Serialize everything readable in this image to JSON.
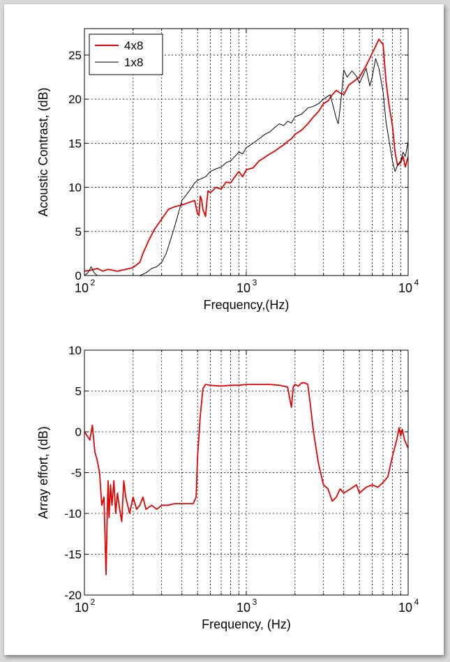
{
  "chart_data": [
    {
      "type": "line",
      "xscale": "log",
      "xlim": [
        100,
        10000
      ],
      "ylim": [
        0,
        28
      ],
      "grid": true,
      "legend_location": "top-left",
      "xlabel": "Frequency,(Hz)",
      "ylabel": "Acoustic Contrast, (dB)",
      "xticks": [
        100,
        1000,
        10000
      ],
      "xtick_labels": [
        {
          "base": "10",
          "exp": "2"
        },
        {
          "base": "10",
          "exp": "3"
        },
        {
          "base": "10",
          "exp": "4"
        }
      ],
      "yticks": [
        0,
        5,
        10,
        15,
        20,
        25
      ],
      "ytick_labels": [
        "0",
        "5",
        "10",
        "15",
        "20",
        "25"
      ],
      "series": [
        {
          "name": "4x8",
          "color": "#e60000",
          "x": [
            100,
            110,
            120,
            130,
            140,
            160,
            180,
            200,
            220,
            230,
            250,
            270,
            300,
            330,
            360,
            400,
            430,
            460,
            480,
            500,
            510,
            520,
            530,
            540,
            560,
            580,
            600,
            650,
            700,
            750,
            800,
            850,
            900,
            950,
            1000,
            1100,
            1200,
            1300,
            1400,
            1500,
            1600,
            1700,
            1800,
            1900,
            2000,
            2200,
            2400,
            2600,
            2800,
            3000,
            3200,
            3400,
            3600,
            3800,
            4000,
            4300,
            4600,
            5000,
            5500,
            6000,
            6300,
            6600,
            7000,
            7300,
            7600,
            8000,
            8300,
            8600,
            9000,
            9300,
            9600,
            10000
          ],
          "y": [
            0.5,
            0.6,
            0.8,
            0.5,
            0.7,
            0.5,
            0.7,
            0.9,
            1.5,
            2.5,
            4.0,
            5.2,
            6.4,
            7.5,
            7.8,
            8.0,
            8.2,
            8.4,
            8.5,
            7.0,
            6.8,
            9.0,
            8.6,
            7.5,
            6.7,
            9.6,
            9.4,
            10.0,
            9.8,
            10.6,
            10.5,
            11.2,
            11.8,
            11.2,
            12.0,
            12.2,
            13.0,
            13.4,
            13.8,
            14.1,
            14.5,
            14.8,
            15.2,
            15.5,
            16.0,
            16.5,
            17.2,
            18.0,
            18.6,
            19.5,
            19.8,
            20.5,
            21.0,
            20.7,
            20.5,
            21.6,
            22.0,
            22.5,
            23.8,
            25.2,
            26.0,
            26.8,
            26.2,
            22.0,
            19.5,
            17.0,
            14.0,
            12.5,
            12.8,
            13.5,
            12.3,
            13.5
          ]
        },
        {
          "name": "1x8",
          "color": "#000000",
          "x": [
            100,
            105,
            110,
            115,
            120,
            130,
            140,
            150,
            160,
            180,
            200,
            220,
            240,
            260,
            280,
            300,
            320,
            340,
            360,
            380,
            400,
            420,
            440,
            460,
            480,
            500,
            530,
            560,
            600,
            650,
            700,
            750,
            800,
            850,
            900,
            950,
            1000,
            1100,
            1200,
            1300,
            1400,
            1500,
            1600,
            1700,
            1800,
            1900,
            2000,
            2200,
            2400,
            2600,
            2800,
            3000,
            3300,
            3600,
            3700,
            3800,
            3900,
            4000,
            4200,
            4500,
            4800,
            5000,
            5500,
            5800,
            6000,
            6300,
            6600,
            7000,
            7300,
            7600,
            8000,
            8300,
            8600,
            9000,
            9300,
            9600,
            10000
          ],
          "y": [
            0.0,
            0.3,
            1.0,
            0.3,
            0.0,
            0.0,
            0.0,
            0.0,
            0.0,
            0.0,
            0.0,
            0.0,
            0.3,
            0.8,
            1.0,
            1.5,
            2.5,
            4.0,
            5.5,
            7.0,
            8.5,
            9.0,
            9.5,
            10.0,
            10.5,
            10.8,
            11.0,
            11.2,
            11.8,
            12.1,
            12.3,
            12.8,
            13.0,
            13.5,
            14.0,
            13.8,
            14.5,
            15.0,
            15.5,
            16.0,
            16.3,
            16.8,
            17.2,
            17.0,
            17.5,
            17.3,
            18.0,
            18.3,
            19.0,
            19.2,
            19.5,
            20.0,
            20.5,
            17.8,
            17.2,
            19.0,
            21.0,
            23.3,
            22.5,
            23.2,
            22.6,
            21.8,
            23.5,
            21.5,
            22.5,
            24.6,
            23.5,
            20.8,
            17.4,
            15.5,
            13.0,
            11.8,
            12.5,
            13.0,
            14.0,
            13.5,
            15.2
          ]
        }
      ]
    },
    {
      "type": "line",
      "xscale": "log",
      "xlim": [
        100,
        10000
      ],
      "ylim": [
        -20,
        10
      ],
      "grid": true,
      "xlabel": "Frequency, (Hz)",
      "ylabel": "Array effort, (dB)",
      "xticks": [
        100,
        1000,
        10000
      ],
      "xtick_labels": [
        {
          "base": "10",
          "exp": "2"
        },
        {
          "base": "10",
          "exp": "3"
        },
        {
          "base": "10",
          "exp": "4"
        }
      ],
      "yticks": [
        -20,
        -15,
        -10,
        -5,
        0,
        5,
        10
      ],
      "ytick_labels": [
        "-20",
        "-15",
        "-10",
        "-5",
        "0",
        "5",
        "10"
      ],
      "series": [
        {
          "color": "#e60000",
          "x": [
            100,
            104,
            108,
            112,
            116,
            120,
            124,
            128,
            132,
            136,
            138,
            140,
            142,
            145,
            148,
            152,
            156,
            160,
            165,
            170,
            175,
            180,
            185,
            190,
            200,
            210,
            220,
            230,
            240,
            260,
            280,
            300,
            330,
            360,
            400,
            440,
            470,
            490,
            500,
            520,
            540,
            560,
            600,
            700,
            800,
            900,
            1000,
            1200,
            1400,
            1600,
            1800,
            1850,
            1900,
            1950,
            2000,
            2100,
            2200,
            2300,
            2400,
            2500,
            2600,
            2800,
            3000,
            3200,
            3400,
            3600,
            3800,
            4000,
            4400,
            4800,
            5000,
            5500,
            6000,
            6500,
            7000,
            7500,
            8000,
            8500,
            8800,
            9000,
            9200,
            9500,
            10000
          ],
          "y": [
            0.0,
            -0.5,
            -1.0,
            0.8,
            -2.5,
            -3.5,
            -5.0,
            -9.0,
            -8.0,
            -17.5,
            -11.0,
            -6.0,
            -10.5,
            -6.5,
            -9.0,
            -6.0,
            -10.0,
            -7.5,
            -9.5,
            -11.0,
            -6.0,
            -8.0,
            -9.0,
            -10.0,
            -8.0,
            -9.5,
            -9.0,
            -8.0,
            -9.5,
            -9.0,
            -9.5,
            -9.0,
            -9.0,
            -8.8,
            -8.8,
            -8.8,
            -8.8,
            -8.0,
            -3.0,
            2.0,
            5.3,
            5.8,
            5.7,
            5.6,
            5.7,
            5.7,
            5.8,
            5.8,
            5.8,
            5.7,
            5.5,
            4.2,
            3.0,
            5.5,
            5.8,
            5.6,
            6.0,
            6.0,
            5.8,
            3.0,
            0.0,
            -4.0,
            -6.5,
            -7.0,
            -8.5,
            -8.0,
            -7.0,
            -7.5,
            -7.0,
            -6.5,
            -7.5,
            -6.8,
            -6.5,
            -6.8,
            -6.2,
            -5.5,
            -3.0,
            -1.0,
            0.5,
            -0.5,
            0.3,
            -1.0,
            -2.0
          ]
        }
      ]
    }
  ]
}
